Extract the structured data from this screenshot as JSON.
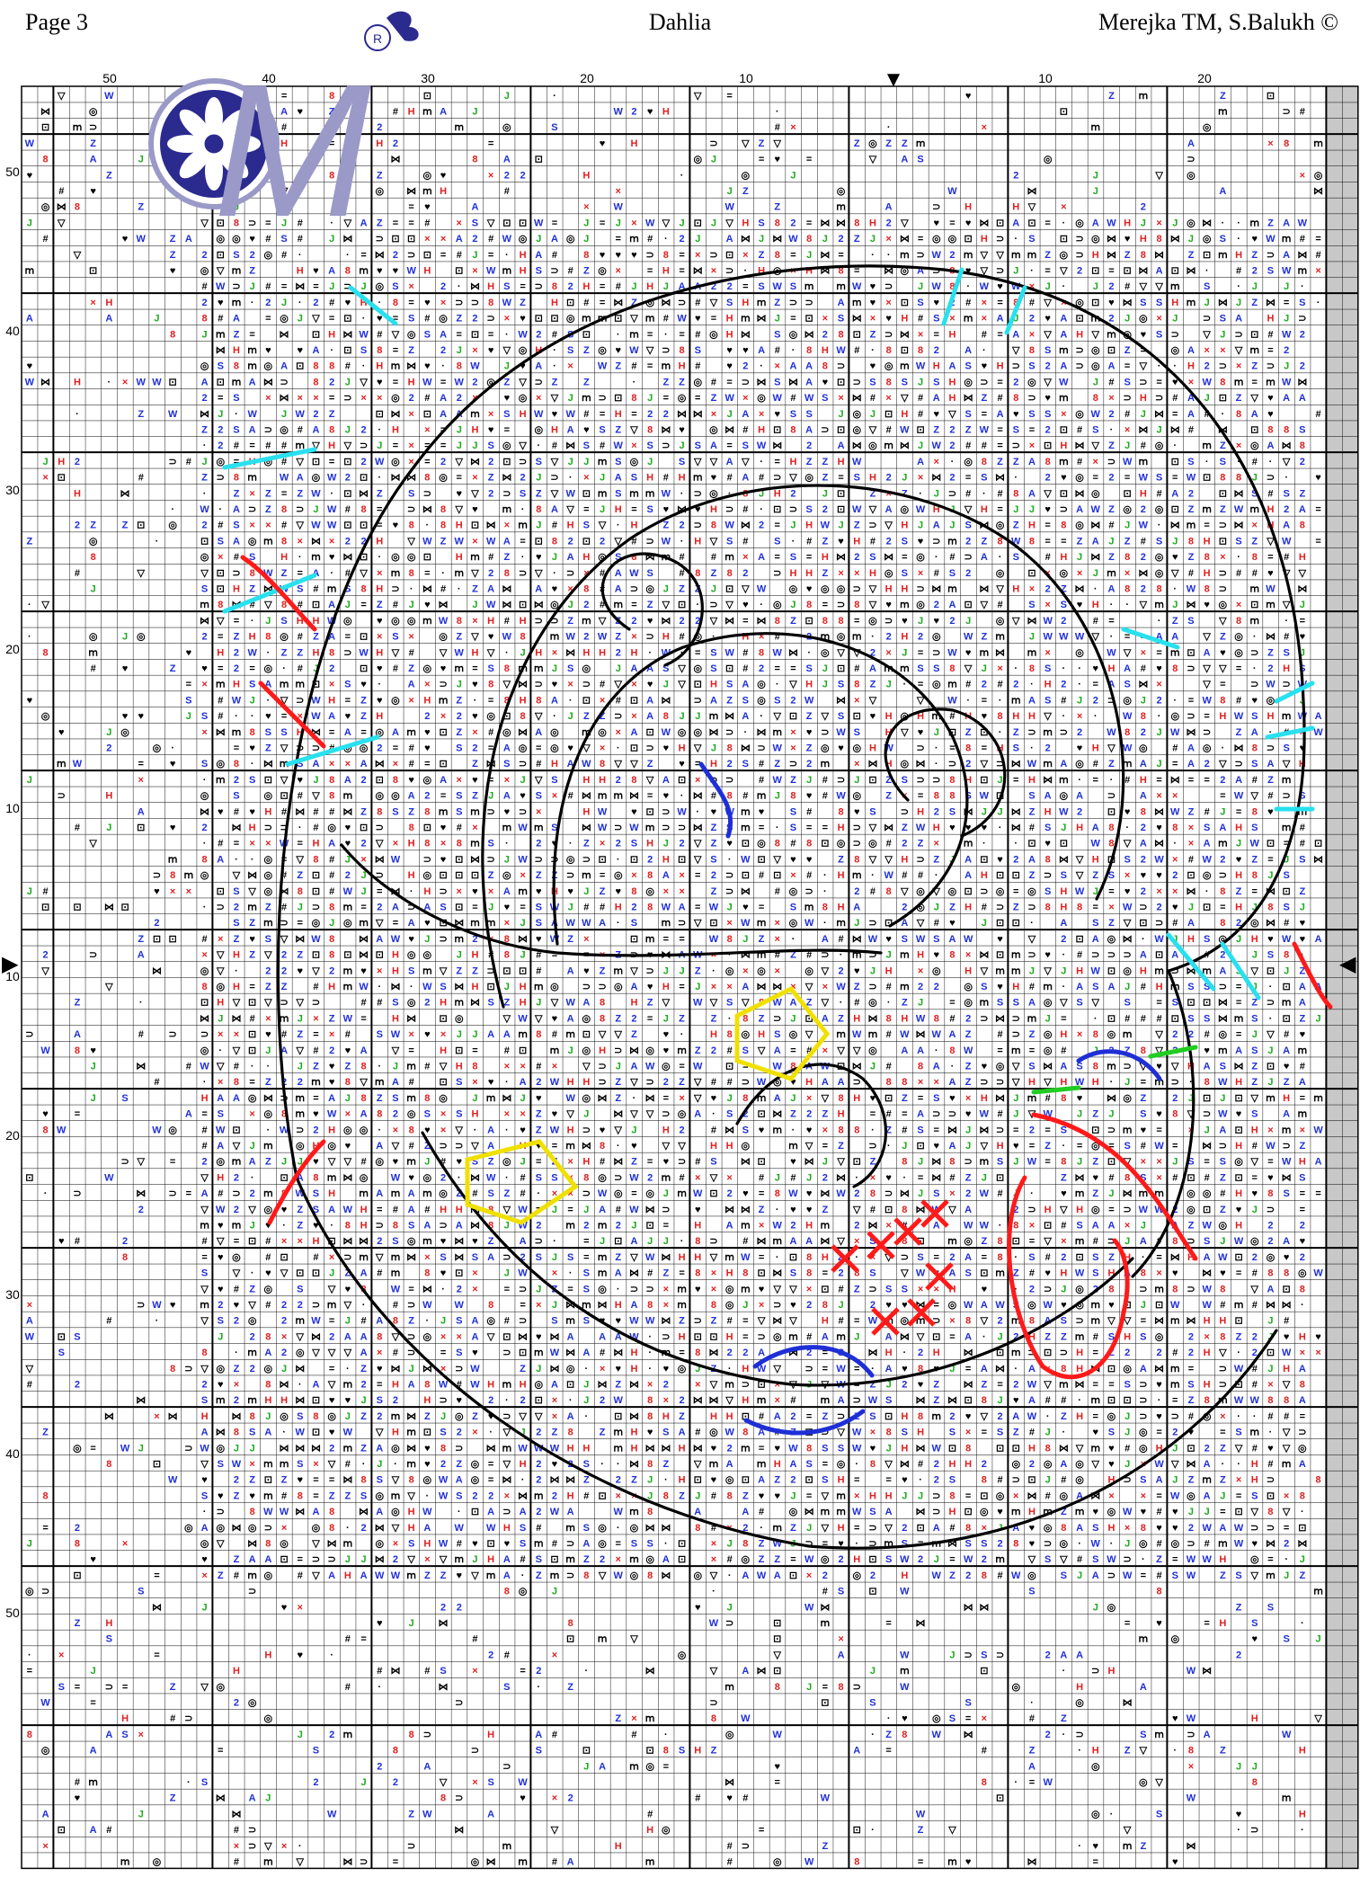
{
  "header": {
    "page_label": "Page 3",
    "title": "Dahlia",
    "copyright": "Merejka TM, S.Balukh ©"
  },
  "logo": {
    "name": "merejka-logo",
    "glyph": "M",
    "mark": "R",
    "colors": {
      "primary": "#2b2a8f",
      "accent": "#9a99c8"
    }
  },
  "grid": {
    "top_ruler_left": [
      "50",
      "40",
      "30",
      "20",
      "10"
    ],
    "top_ruler_right": [
      "10",
      "20"
    ],
    "left_ruler": [
      "50",
      "40",
      "30",
      "20",
      "10",
      "10",
      "20",
      "30",
      "40",
      "50"
    ],
    "center_markers": {
      "top": "▼",
      "left": "▶",
      "right": "◀"
    }
  },
  "colors": {
    "grid_line": "#000000",
    "outline": "#000000",
    "backstitch_red": "#ff1a1a",
    "backstitch_cyan": "#29e0ee",
    "backstitch_blue": "#1f2fd6",
    "backstitch_yellow": "#f0e000",
    "backstitch_green": "#22cc22",
    "symbol_blue": "#1f2fd6",
    "symbol_red": "#e02020",
    "symbol_green": "#1faa1f",
    "shaded_column": "#c8c8c8"
  }
}
